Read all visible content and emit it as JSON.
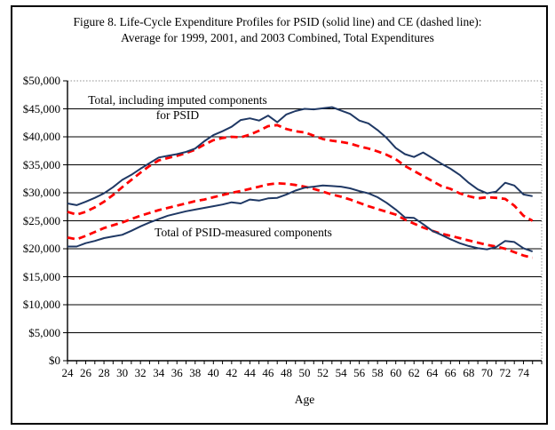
{
  "figure": {
    "title_line1": "Figure 8. Life-Cycle Expenditure Profiles for PSID (solid line) and CE (dashed line):",
    "title_line2": "Average for 1999, 2001, and 2003 Combined, Total Expenditures"
  },
  "chart_data": {
    "type": "line",
    "title": "Figure 8. Life-Cycle Expenditure Profiles for PSID (solid line) and CE (dashed line): Average for 1999, 2001, and 2003 Combined, Total Expenditures",
    "xlabel": "Age",
    "ylabel": "",
    "xlim": [
      24,
      76
    ],
    "ylim": [
      0,
      50000
    ],
    "ytick_interval": 5000,
    "grid": "horizontal",
    "legend": "none (in-plot text annotations)",
    "ytick_labels": [
      "$50,000",
      "$45,000",
      "$40,000",
      "$35,000",
      "$30,000",
      "$25,000",
      "$20,000",
      "$15,000",
      "$10,000",
      "$5,000",
      "$0"
    ],
    "xtick_labels": [
      "24",
      "26",
      "28",
      "30",
      "32",
      "34",
      "36",
      "38",
      "40",
      "42",
      "44",
      "46",
      "48",
      "50",
      "52",
      "54",
      "56",
      "58",
      "60",
      "62",
      "64",
      "66",
      "68",
      "70",
      "72",
      "74"
    ],
    "x": [
      24,
      25,
      26,
      27,
      28,
      29,
      30,
      31,
      32,
      33,
      34,
      35,
      36,
      37,
      38,
      39,
      40,
      41,
      42,
      43,
      44,
      45,
      46,
      47,
      48,
      49,
      50,
      51,
      52,
      53,
      54,
      55,
      56,
      57,
      58,
      59,
      60,
      61,
      62,
      63,
      64,
      65,
      66,
      67,
      68,
      69,
      70,
      71,
      72,
      73,
      74,
      75
    ],
    "series": [
      {
        "key": "ce-total",
        "name": "CE total, including imputed components (dashed)",
        "color": "#FF0000",
        "style": "dashed",
        "values": [
          26600,
          26100,
          26600,
          27400,
          28400,
          29600,
          31000,
          32300,
          33600,
          34800,
          35800,
          36200,
          36600,
          37100,
          37700,
          38600,
          39400,
          39800,
          40000,
          39900,
          40400,
          41100,
          41900,
          42100,
          41400,
          41000,
          40800,
          40200,
          39600,
          39300,
          39100,
          38800,
          38300,
          37900,
          37400,
          36800,
          36000,
          34800,
          33900,
          33000,
          32100,
          31200,
          30700,
          29900,
          29400,
          29000,
          29200,
          29100,
          28900,
          27700,
          25900,
          25000
        ]
      },
      {
        "key": "ce-measured",
        "name": "CE total of PSID-measured components (dashed)",
        "color": "#FF0000",
        "style": "dashed",
        "values": [
          22000,
          21700,
          22300,
          23000,
          23700,
          24200,
          24700,
          25300,
          25900,
          26400,
          26900,
          27300,
          27700,
          28100,
          28500,
          28800,
          29200,
          29600,
          30000,
          30300,
          30700,
          31100,
          31500,
          31700,
          31600,
          31400,
          31100,
          30700,
          30200,
          29700,
          29300,
          28800,
          28200,
          27600,
          27100,
          26600,
          26100,
          25200,
          24500,
          23800,
          23200,
          22700,
          22300,
          21900,
          21500,
          21100,
          20700,
          20400,
          20000,
          19400,
          18800,
          18400
        ]
      },
      {
        "key": "psid-total",
        "name": "PSID total, including imputed components (solid)",
        "color": "#1F3864",
        "style": "solid",
        "values": [
          28100,
          27800,
          28400,
          29100,
          29900,
          31000,
          32300,
          33200,
          34300,
          35300,
          36300,
          36600,
          36900,
          37300,
          37900,
          39200,
          40300,
          41000,
          41800,
          43000,
          43300,
          42900,
          43800,
          42600,
          44000,
          44600,
          45000,
          44900,
          45100,
          45300,
          44700,
          44100,
          42900,
          42400,
          41200,
          39800,
          38000,
          36900,
          36400,
          37200,
          36200,
          35200,
          34300,
          33200,
          31800,
          30600,
          29900,
          30200,
          31800,
          31300,
          29700,
          29400
        ]
      },
      {
        "key": "psid-measured",
        "name": "PSID total of measured components (solid)",
        "color": "#1F3864",
        "style": "solid",
        "values": [
          20400,
          20400,
          21000,
          21400,
          21900,
          22200,
          22500,
          23200,
          24000,
          24700,
          25300,
          25900,
          26300,
          26700,
          27000,
          27300,
          27600,
          27900,
          28300,
          28100,
          28800,
          28600,
          29000,
          29100,
          29700,
          30400,
          30900,
          31100,
          31300,
          31200,
          31100,
          30800,
          30300,
          29900,
          29200,
          28200,
          27000,
          25600,
          25500,
          24400,
          23200,
          22500,
          21700,
          21000,
          20500,
          20100,
          19900,
          20300,
          21400,
          21200,
          20100,
          19500
        ]
      }
    ],
    "annotations": [
      {
        "line1": "Total, including imputed components",
        "line2": "for PSID"
      },
      {
        "line1": "Total of PSID-measured components"
      }
    ]
  }
}
